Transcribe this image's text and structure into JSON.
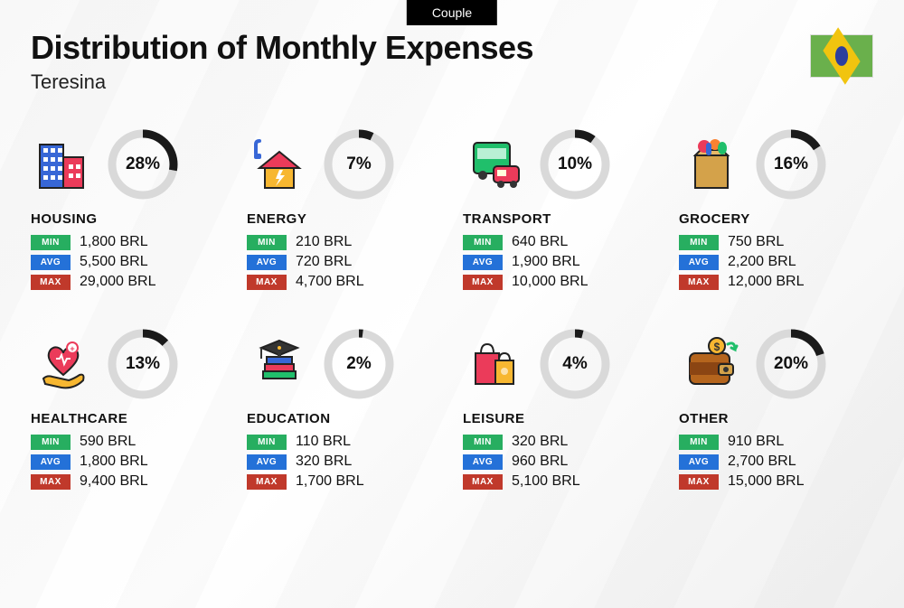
{
  "badge": "Couple",
  "title": "Distribution of Monthly Expenses",
  "subtitle": "Teresina",
  "country": "Brazil",
  "currency": "BRL",
  "labels": {
    "min": "MIN",
    "avg": "AVG",
    "max": "MAX"
  },
  "colors": {
    "min_tag": "#27ae60",
    "avg_tag": "#2471d8",
    "max_tag": "#c0392b",
    "ring_track": "#d9d9d9",
    "ring_fill": "#1a1a1a",
    "text": "#111111",
    "background": "#f8f8f8"
  },
  "ring": {
    "radius": 34,
    "stroke_width": 9,
    "size": 80
  },
  "typography": {
    "title_size": 36,
    "title_weight": 800,
    "subtitle_size": 22,
    "category_size": 15,
    "category_weight": 800,
    "pct_size": 19,
    "pct_weight": 800,
    "value_size": 16
  },
  "categories": [
    {
      "key": "housing",
      "name": "HOUSING",
      "pct": 28,
      "min": "1,800 BRL",
      "avg": "5,500 BRL",
      "max": "29,000 BRL",
      "icon": "buildings"
    },
    {
      "key": "energy",
      "name": "ENERGY",
      "pct": 7,
      "min": "210 BRL",
      "avg": "720 BRL",
      "max": "4,700 BRL",
      "icon": "energy-house"
    },
    {
      "key": "transport",
      "name": "TRANSPORT",
      "pct": 10,
      "min": "640 BRL",
      "avg": "1,900 BRL",
      "max": "10,000 BRL",
      "icon": "bus-car"
    },
    {
      "key": "grocery",
      "name": "GROCERY",
      "pct": 16,
      "min": "750 BRL",
      "avg": "2,200 BRL",
      "max": "12,000 BRL",
      "icon": "grocery-bag"
    },
    {
      "key": "healthcare",
      "name": "HEALTHCARE",
      "pct": 13,
      "min": "590 BRL",
      "avg": "1,800 BRL",
      "max": "9,400 BRL",
      "icon": "heart-hand"
    },
    {
      "key": "education",
      "name": "EDUCATION",
      "pct": 2,
      "min": "110 BRL",
      "avg": "320 BRL",
      "max": "1,700 BRL",
      "icon": "books-cap"
    },
    {
      "key": "leisure",
      "name": "LEISURE",
      "pct": 4,
      "min": "320 BRL",
      "avg": "960 BRL",
      "max": "5,100 BRL",
      "icon": "shopping-bags"
    },
    {
      "key": "other",
      "name": "OTHER",
      "pct": 20,
      "min": "910 BRL",
      "avg": "2,700 BRL",
      "max": "15,000 BRL",
      "icon": "wallet"
    }
  ]
}
